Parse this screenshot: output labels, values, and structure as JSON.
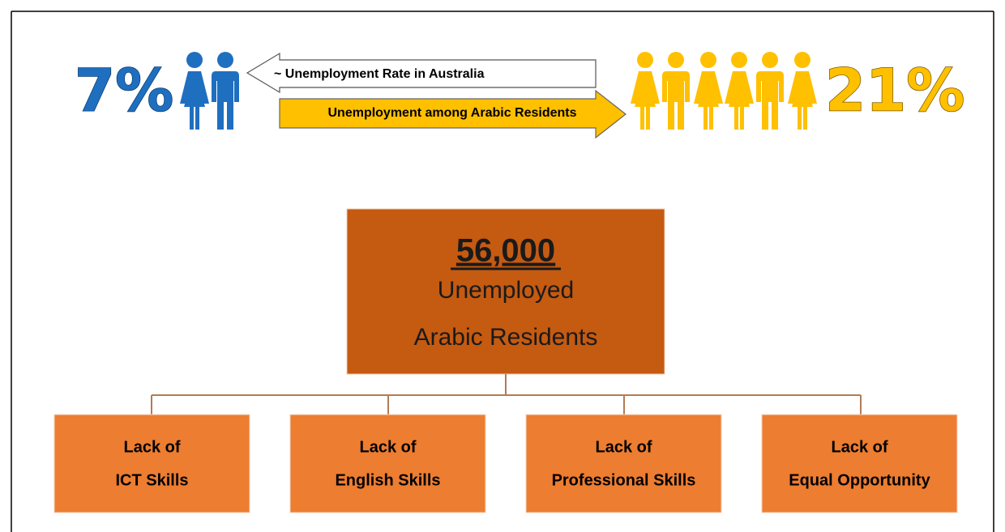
{
  "header": {
    "australia_rate": "7%",
    "australia_label": "~ Unemployment Rate in Australia",
    "arabic_label": "Unemployment among Arabic Residents",
    "arabic_rate": "21%"
  },
  "root": {
    "count": "56,000",
    "lines": [
      "Unemployed",
      "Arabic Residents"
    ]
  },
  "children": [
    {
      "lines": [
        "Lack of",
        "ICT Skills"
      ]
    },
    {
      "lines": [
        "Lack of",
        "English Skills"
      ]
    },
    {
      "lines": [
        "Lack of",
        "Professional Skills"
      ]
    },
    {
      "lines": [
        "Lack of",
        "Equal Opportunity"
      ]
    }
  ]
}
